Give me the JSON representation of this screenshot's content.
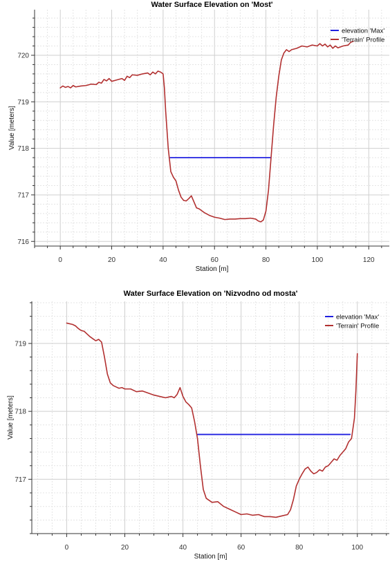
{
  "chart_data": [
    {
      "type": "line",
      "title": "Water Surface Elevation on 'Most'",
      "xlabel": "Station [m]",
      "ylabel": "Value [meters]",
      "xlim": [
        -10,
        128
      ],
      "ylim": [
        715.9,
        720.98
      ],
      "x_ticks": [
        0,
        20,
        40,
        60,
        80,
        100,
        120
      ],
      "y_ticks": [
        716,
        717,
        718,
        719,
        720
      ],
      "grid": true,
      "legend_position": "top-right",
      "series": [
        {
          "name": "elevation 'Max'",
          "color": "#1f1fe0",
          "points": [
            [
              42.8,
              717.8
            ],
            [
              81.8,
              717.8
            ]
          ]
        },
        {
          "name": "'Terrain' Profile",
          "color": "#b23030",
          "points": [
            [
              0,
              719.3
            ],
            [
              1,
              719.34
            ],
            [
              2,
              719.31
            ],
            [
              3,
              719.33
            ],
            [
              4,
              719.3
            ],
            [
              5,
              719.35
            ],
            [
              6,
              719.32
            ],
            [
              8,
              719.34
            ],
            [
              10,
              719.35
            ],
            [
              12,
              719.38
            ],
            [
              14,
              719.37
            ],
            [
              15,
              719.42
            ],
            [
              16,
              719.4
            ],
            [
              17,
              719.48
            ],
            [
              18,
              719.45
            ],
            [
              19,
              719.5
            ],
            [
              20,
              719.44
            ],
            [
              22,
              719.47
            ],
            [
              24,
              719.5
            ],
            [
              25,
              719.46
            ],
            [
              26,
              719.55
            ],
            [
              27,
              719.52
            ],
            [
              28,
              719.58
            ],
            [
              30,
              719.57
            ],
            [
              32,
              719.6
            ],
            [
              34,
              719.62
            ],
            [
              35,
              719.58
            ],
            [
              36,
              719.64
            ],
            [
              37,
              719.6
            ],
            [
              38,
              719.66
            ],
            [
              39,
              719.64
            ],
            [
              40,
              719.6
            ],
            [
              40.5,
              719.3
            ],
            [
              41,
              718.8
            ],
            [
              42,
              718.0
            ],
            [
              43,
              717.5
            ],
            [
              44,
              717.38
            ],
            [
              45,
              717.3
            ],
            [
              46,
              717.1
            ],
            [
              47,
              716.95
            ],
            [
              48,
              716.88
            ],
            [
              49,
              716.87
            ],
            [
              50,
              716.92
            ],
            [
              51,
              716.98
            ],
            [
              52,
              716.85
            ],
            [
              53,
              716.72
            ],
            [
              54,
              716.7
            ],
            [
              56,
              716.62
            ],
            [
              58,
              716.56
            ],
            [
              60,
              716.52
            ],
            [
              62,
              716.5
            ],
            [
              64,
              716.47
            ],
            [
              66,
              716.48
            ],
            [
              68,
              716.48
            ],
            [
              70,
              716.49
            ],
            [
              72,
              716.49
            ],
            [
              74,
              716.5
            ],
            [
              76,
              716.48
            ],
            [
              77,
              716.44
            ],
            [
              78,
              716.42
            ],
            [
              79,
              716.46
            ],
            [
              80,
              716.65
            ],
            [
              81,
              717.1
            ],
            [
              82,
              717.8
            ],
            [
              83,
              718.5
            ],
            [
              84,
              719.1
            ],
            [
              85,
              719.55
            ],
            [
              86,
              719.9
            ],
            [
              87,
              720.05
            ],
            [
              88,
              720.12
            ],
            [
              89,
              720.08
            ],
            [
              90,
              720.12
            ],
            [
              92,
              720.15
            ],
            [
              94,
              720.2
            ],
            [
              96,
              720.18
            ],
            [
              98,
              720.22
            ],
            [
              100,
              720.2
            ],
            [
              101,
              720.25
            ],
            [
              102,
              720.2
            ],
            [
              103,
              720.24
            ],
            [
              104,
              720.18
            ],
            [
              105,
              720.22
            ],
            [
              106,
              720.15
            ],
            [
              107,
              720.2
            ],
            [
              108,
              720.16
            ],
            [
              110,
              720.2
            ],
            [
              112,
              720.22
            ],
            [
              113,
              720.28
            ],
            [
              114,
              720.3
            ]
          ]
        }
      ]
    },
    {
      "type": "line",
      "title": "Water Surface Elevation on 'Nizvodno od mosta'",
      "xlabel": "Station [m]",
      "ylabel": "Value [meters]",
      "xlim": [
        -12,
        111
      ],
      "ylim": [
        716.2,
        719.62
      ],
      "x_ticks": [
        0,
        20,
        40,
        60,
        80,
        100
      ],
      "y_ticks": [
        717,
        718,
        719
      ],
      "grid": true,
      "legend_position": "top-right",
      "series": [
        {
          "name": "elevation 'Max'",
          "color": "#1f1fe0",
          "points": [
            [
              45,
              717.66
            ],
            [
              97.5,
              717.66
            ]
          ]
        },
        {
          "name": "'Terrain' Profile",
          "color": "#b23030",
          "points": [
            [
              0,
              719.3
            ],
            [
              2,
              719.28
            ],
            [
              3,
              719.26
            ],
            [
              4,
              719.22
            ],
            [
              5,
              719.19
            ],
            [
              6,
              719.18
            ],
            [
              7,
              719.14
            ],
            [
              8,
              719.1
            ],
            [
              9,
              719.07
            ],
            [
              10,
              719.04
            ],
            [
              11,
              719.06
            ],
            [
              12,
              719.02
            ],
            [
              13,
              718.8
            ],
            [
              14,
              718.55
            ],
            [
              15,
              718.42
            ],
            [
              16,
              718.38
            ],
            [
              17,
              718.36
            ],
            [
              18,
              718.34
            ],
            [
              19,
              718.35
            ],
            [
              20,
              718.33
            ],
            [
              22,
              718.33
            ],
            [
              24,
              718.29
            ],
            [
              26,
              718.3
            ],
            [
              28,
              718.27
            ],
            [
              30,
              718.24
            ],
            [
              32,
              718.22
            ],
            [
              34,
              718.2
            ],
            [
              36,
              718.22
            ],
            [
              37,
              718.2
            ],
            [
              38,
              718.25
            ],
            [
              39,
              718.35
            ],
            [
              40,
              718.22
            ],
            [
              41,
              718.14
            ],
            [
              42,
              718.1
            ],
            [
              43,
              718.05
            ],
            [
              44,
              717.85
            ],
            [
              45,
              717.6
            ],
            [
              46,
              717.2
            ],
            [
              47,
              716.85
            ],
            [
              48,
              716.72
            ],
            [
              50,
              716.66
            ],
            [
              52,
              716.67
            ],
            [
              54,
              716.6
            ],
            [
              56,
              716.56
            ],
            [
              58,
              716.52
            ],
            [
              60,
              716.48
            ],
            [
              62,
              716.49
            ],
            [
              64,
              716.47
            ],
            [
              66,
              716.48
            ],
            [
              68,
              716.45
            ],
            [
              70,
              716.45
            ],
            [
              72,
              716.44
            ],
            [
              74,
              716.46
            ],
            [
              76,
              716.48
            ],
            [
              77,
              716.55
            ],
            [
              78,
              716.7
            ],
            [
              79,
              716.9
            ],
            [
              80,
              717.0
            ],
            [
              81,
              717.08
            ],
            [
              82,
              717.15
            ],
            [
              83,
              717.18
            ],
            [
              84,
              717.12
            ],
            [
              85,
              717.08
            ],
            [
              86,
              717.1
            ],
            [
              87,
              717.14
            ],
            [
              88,
              717.12
            ],
            [
              89,
              717.18
            ],
            [
              90,
              717.2
            ],
            [
              91,
              717.25
            ],
            [
              92,
              717.3
            ],
            [
              93,
              717.28
            ],
            [
              94,
              717.35
            ],
            [
              95,
              717.4
            ],
            [
              96,
              717.45
            ],
            [
              97,
              717.55
            ],
            [
              98,
              717.6
            ],
            [
              99,
              717.9
            ],
            [
              99.5,
              718.3
            ],
            [
              100,
              718.85
            ]
          ]
        }
      ]
    }
  ]
}
